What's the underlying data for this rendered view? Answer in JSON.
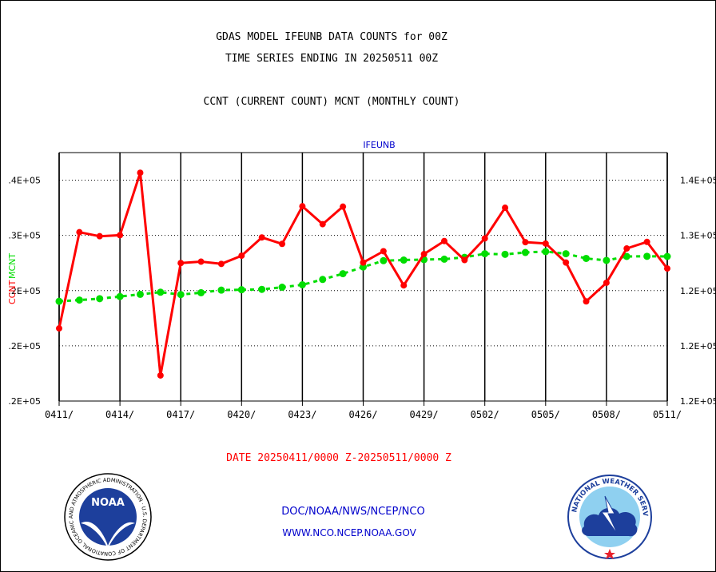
{
  "header": {
    "title_line1": "GDAS MODEL IFEUNB DATA COUNTS for 00Z",
    "title_line2": "TIME SERIES ENDING IN 20250511 00Z",
    "title_line3": "CCNT (CURRENT COUNT) MCNT (MONTHLY COUNT)"
  },
  "footer": {
    "date_range": "DATE 20250411/0000 Z-20250511/0000 Z",
    "org_path": "DOC/NOAA/NWS/NCEP/NCO",
    "website": "WWW.NCO.NCEP.NOAA.GOV"
  },
  "logos": {
    "noaa_label": "NOAA",
    "noaa_ring_text": "NATIONAL OCEANIC AND ATMOSPHERIC ADMINISTRATION · U.S. DEPARTMENT OF COMMERCE ·",
    "nws_ring_text": "NATIONAL WEATHER SERVICE"
  },
  "colors": {
    "ccnt": "#ff0000",
    "mcnt": "#00dd00",
    "series_label": "#0000cc",
    "gridline": "#000000"
  },
  "chart_data": {
    "type": "line",
    "title": "IFEUNB",
    "ylabel_left": "CCNT",
    "ylabel_right": "MCNT",
    "x_tick_labels": [
      "0411/",
      "0414/",
      "0417/",
      "0420/",
      "0423/",
      "0426/",
      "0429/",
      "0502/",
      "0505/",
      "0508/",
      "0511/"
    ],
    "left_tick_labels": [
      ".2E+05",
      ".2E+05",
      ".2E+05",
      ".3E+05",
      ".4E+05"
    ],
    "right_tick_labels": [
      "1.2E+05",
      "1.2E+05",
      "1.2E+05",
      "1.3E+05",
      "1.4E+05"
    ],
    "ylim": [
      0.2,
      0.4
    ],
    "grid": true,
    "x_days": 31,
    "series": [
      {
        "name": "CCNT",
        "style": "solid",
        "values": [
          0.2585,
          0.3359,
          0.3327,
          0.3335,
          0.3838,
          0.2206,
          0.3111,
          0.3122,
          0.3104,
          0.317,
          0.3317,
          0.3265,
          0.3568,
          0.3424,
          0.3565,
          0.3115,
          0.3206,
          0.2931,
          0.3183,
          0.3288,
          0.3135,
          0.3309,
          0.3556,
          0.3279,
          0.3268,
          0.3115,
          0.2802,
          0.2952,
          0.3228,
          0.3281,
          0.3067
        ]
      },
      {
        "name": "MCNT",
        "style": "dashed",
        "values": [
          0.2803,
          0.2813,
          0.2824,
          0.2841,
          0.2859,
          0.2876,
          0.2857,
          0.2872,
          0.2893,
          0.2896,
          0.2899,
          0.2916,
          0.2936,
          0.2979,
          0.3025,
          0.3079,
          0.313,
          0.3135,
          0.3139,
          0.3142,
          0.3157,
          0.3186,
          0.3181,
          0.3196,
          0.3203,
          0.3186,
          0.3148,
          0.3132,
          0.3164,
          0.3165,
          0.3164
        ]
      }
    ]
  }
}
